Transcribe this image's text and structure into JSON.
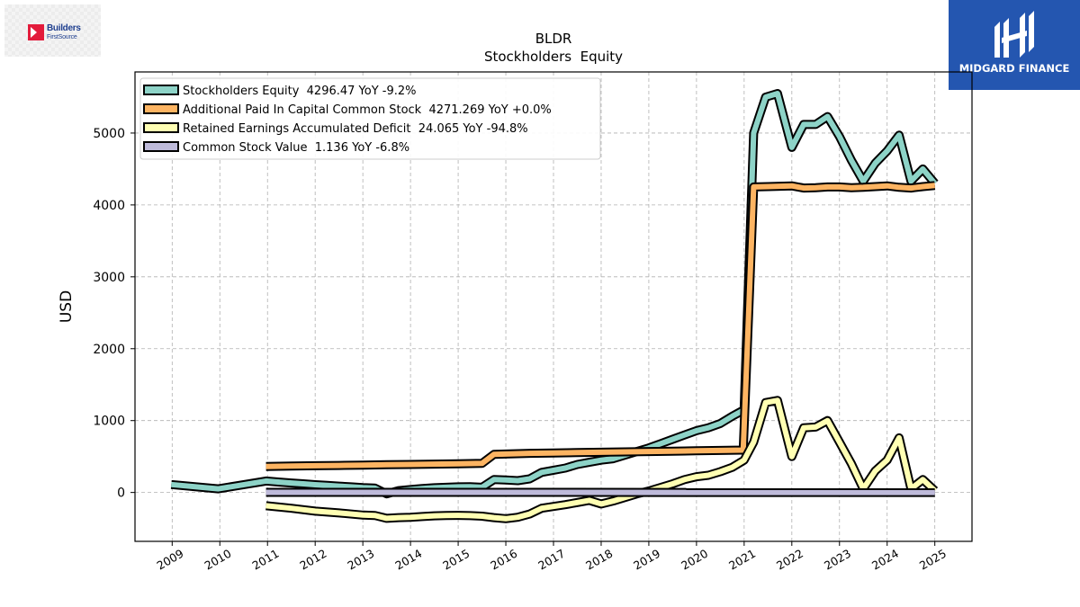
{
  "chart_data": {
    "type": "line",
    "title": "BLDR",
    "subtitle": "Stockholders  Equity",
    "ylabel": "USD",
    "xlabel": "",
    "ylim": [
      -680,
      5850
    ],
    "xlim": [
      2008.22,
      2025.78
    ],
    "yticks": [
      0,
      1000,
      2000,
      3000,
      4000,
      5000
    ],
    "xticks": [
      "2009",
      "2010",
      "2011",
      "2012",
      "2013",
      "2014",
      "2015",
      "2016",
      "2017",
      "2018",
      "2019",
      "2020",
      "2021",
      "2022",
      "2023",
      "2024",
      "2025"
    ],
    "grid": true,
    "legend_position": "top-left",
    "series": [
      {
        "name": "Stockholders Equity",
        "legend_label": "Stockholders Equity  4296.47 YoY -9.2%",
        "color": "#8dd3c7",
        "x": [
          2008.98,
          2009.97,
          2010.97,
          2011.25,
          2011.5,
          2011.75,
          2012.0,
          2012.25,
          2012.5,
          2012.75,
          2013.0,
          2013.25,
          2013.5,
          2013.75,
          2014.0,
          2014.25,
          2014.5,
          2014.75,
          2015.0,
          2015.25,
          2015.5,
          2015.75,
          2016.0,
          2016.25,
          2016.5,
          2016.75,
          2017.0,
          2017.25,
          2017.5,
          2017.75,
          2018.0,
          2018.25,
          2018.5,
          2018.75,
          2019.0,
          2019.25,
          2019.5,
          2019.75,
          2020.0,
          2020.25,
          2020.5,
          2020.75,
          2021.0,
          2021.2,
          2021.45,
          2021.7,
          2022.0,
          2022.25,
          2022.5,
          2022.75,
          2023.0,
          2023.25,
          2023.5,
          2023.75,
          2024.0,
          2024.25,
          2024.5,
          2024.75,
          2025.0
        ],
        "y": [
          110,
          50,
          160,
          145,
          132,
          120,
          108,
          98,
          88,
          78,
          68,
          62,
          -20,
          25,
          40,
          55,
          65,
          72,
          78,
          80,
          72,
          180,
          175,
          165,
          190,
          280,
          310,
          340,
          390,
          420,
          450,
          470,
          520,
          570,
          620,
          680,
          740,
          800,
          860,
          900,
          960,
          1060,
          1150,
          5000,
          5500,
          5550,
          4800,
          5120,
          5120,
          5230,
          4950,
          4620,
          4330,
          4580,
          4750,
          4970,
          4330,
          4500,
          4300
        ]
      },
      {
        "name": "Additional Paid In Capital Common Stock",
        "legend_label": "Additional Paid In Capital Common Stock  4271.269 YoY +0.0%",
        "color": "#fdb462",
        "x": [
          2010.97,
          2011.5,
          2012.0,
          2012.5,
          2013.0,
          2013.5,
          2014.0,
          2014.5,
          2015.0,
          2015.5,
          2015.75,
          2016.0,
          2016.5,
          2017.0,
          2017.5,
          2018.0,
          2018.5,
          2019.0,
          2019.5,
          2020.0,
          2020.5,
          2020.98,
          2021.2,
          2021.5,
          2022.0,
          2022.25,
          2022.5,
          2022.75,
          2023.0,
          2023.25,
          2023.5,
          2023.75,
          2024.0,
          2024.25,
          2024.5,
          2024.75,
          2025.0
        ],
        "y": [
          362,
          367,
          372,
          376,
          381,
          386,
          390,
          395,
          400,
          404,
          530,
          535,
          545,
          550,
          555,
          560,
          565,
          570,
          575,
          580,
          585,
          590,
          4250,
          4255,
          4265,
          4235,
          4240,
          4250,
          4250,
          4240,
          4245,
          4255,
          4265,
          4245,
          4235,
          4255,
          4270
        ]
      },
      {
        "name": "Retained Earnings Accumulated Deficit",
        "legend_label": "Retained Earnings Accumulated Deficit  24.065 YoY -94.8%",
        "color": "#ffffb3",
        "x": [
          2010.97,
          2011.5,
          2012.0,
          2012.5,
          2013.0,
          2013.25,
          2013.5,
          2013.75,
          2014.0,
          2014.25,
          2014.5,
          2014.75,
          2015.0,
          2015.25,
          2015.5,
          2015.75,
          2016.0,
          2016.25,
          2016.5,
          2016.75,
          2017.0,
          2017.25,
          2017.5,
          2017.75,
          2018.0,
          2018.25,
          2018.5,
          2018.75,
          2019.0,
          2019.25,
          2019.5,
          2019.75,
          2020.0,
          2020.25,
          2020.5,
          2020.75,
          2021.0,
          2021.2,
          2021.45,
          2021.7,
          2022.0,
          2022.25,
          2022.5,
          2022.75,
          2023.0,
          2023.25,
          2023.5,
          2023.75,
          2024.0,
          2024.25,
          2024.5,
          2024.75,
          2025.0
        ],
        "y": [
          -185,
          -220,
          -260,
          -285,
          -315,
          -320,
          -360,
          -350,
          -345,
          -335,
          -325,
          -320,
          -318,
          -322,
          -330,
          -350,
          -365,
          -345,
          -300,
          -220,
          -195,
          -170,
          -140,
          -110,
          -160,
          -120,
          -70,
          -20,
          20,
          70,
          120,
          180,
          220,
          240,
          290,
          350,
          450,
          700,
          1250,
          1280,
          500,
          900,
          910,
          1000,
          700,
          400,
          50,
          300,
          450,
          760,
          50,
          180,
          24
        ]
      },
      {
        "name": "Common Stock Value",
        "legend_label": "Common Stock Value  1.136 YoY -6.8%",
        "color": "#bebada",
        "x": [
          2010.97,
          2025.0
        ],
        "y": [
          1.2,
          1.136
        ]
      }
    ]
  }
}
